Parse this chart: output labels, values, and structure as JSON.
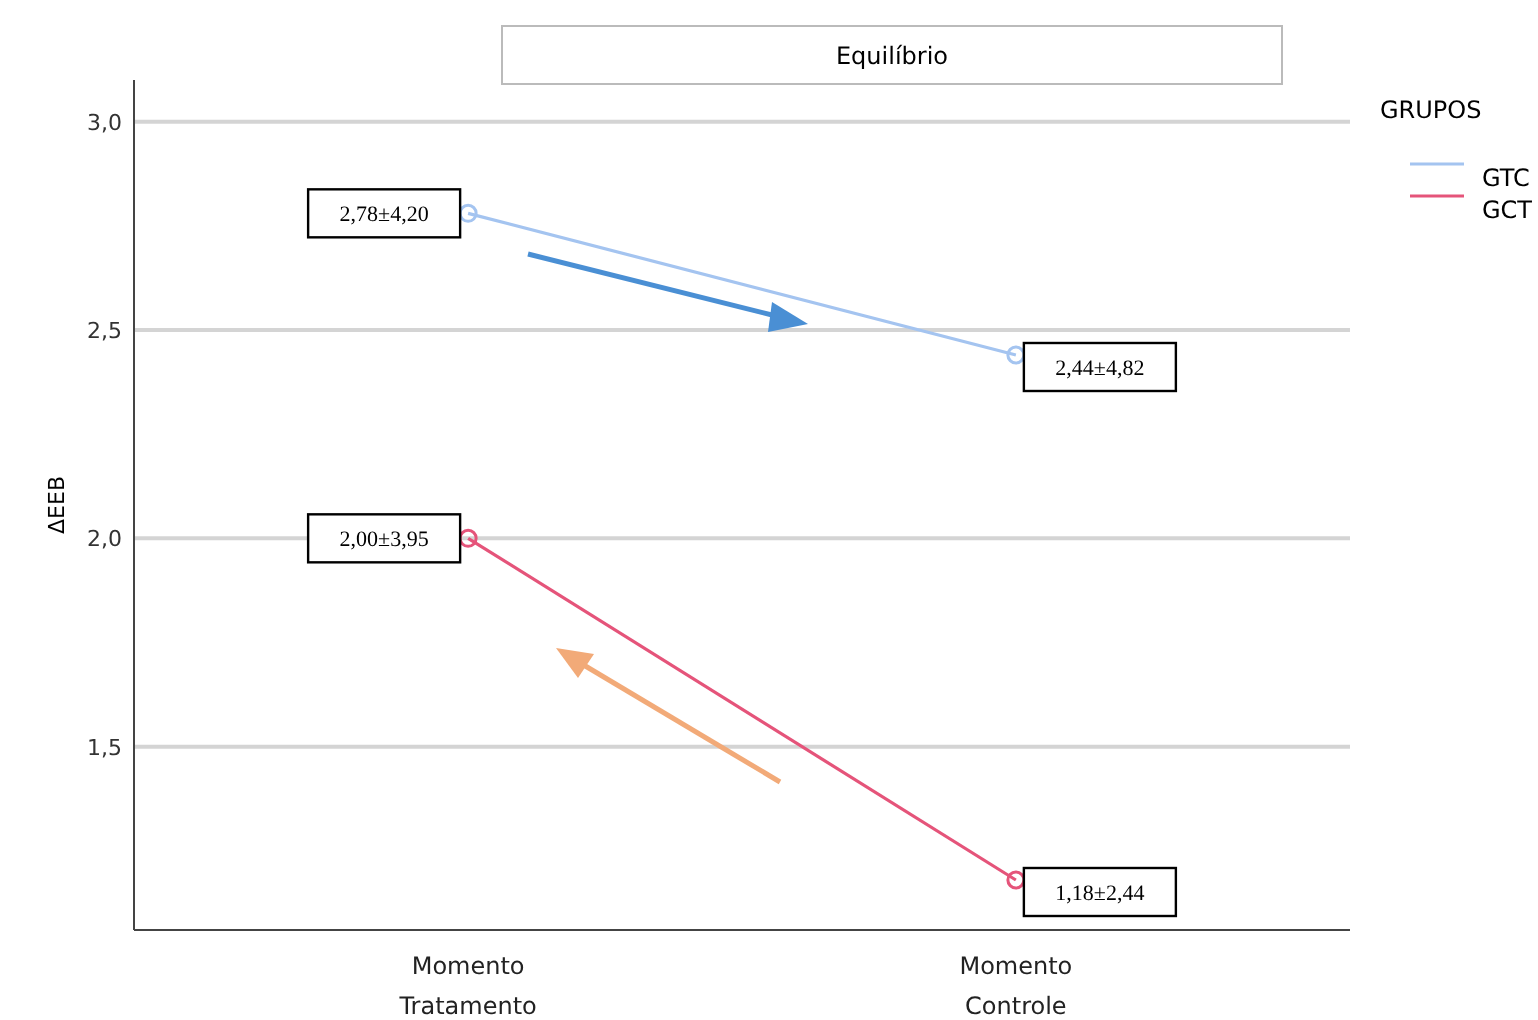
{
  "chart_data": {
    "type": "line",
    "title": "Equilíbrio",
    "ylabel": "ΔEEB",
    "legend_title": "GRUPOS",
    "categories": [
      "Momento Tratamento",
      "Momento Controle"
    ],
    "series": [
      {
        "name": "GTC",
        "color": "#a4c4f0",
        "values": [
          2.78,
          2.44
        ],
        "value_labels": [
          "2,78±4,20",
          "2,44±4,82"
        ]
      },
      {
        "name": "GCT",
        "color": "#e5547a",
        "values": [
          2.0,
          1.18
        ],
        "value_labels": [
          "2,00±3,95",
          "1,18±2,44"
        ]
      }
    ],
    "ylim": [
      1.06,
      3.1
    ],
    "yticks": [
      {
        "value": 1.5,
        "label": "1,5"
      },
      {
        "value": 2,
        "label": "2,0"
      },
      {
        "value": 2.5,
        "label": "2,5"
      },
      {
        "value": 3,
        "label": "3,0"
      }
    ],
    "grid": "y",
    "legend": "top right",
    "marker": "circle",
    "line_style": "solid"
  }
}
